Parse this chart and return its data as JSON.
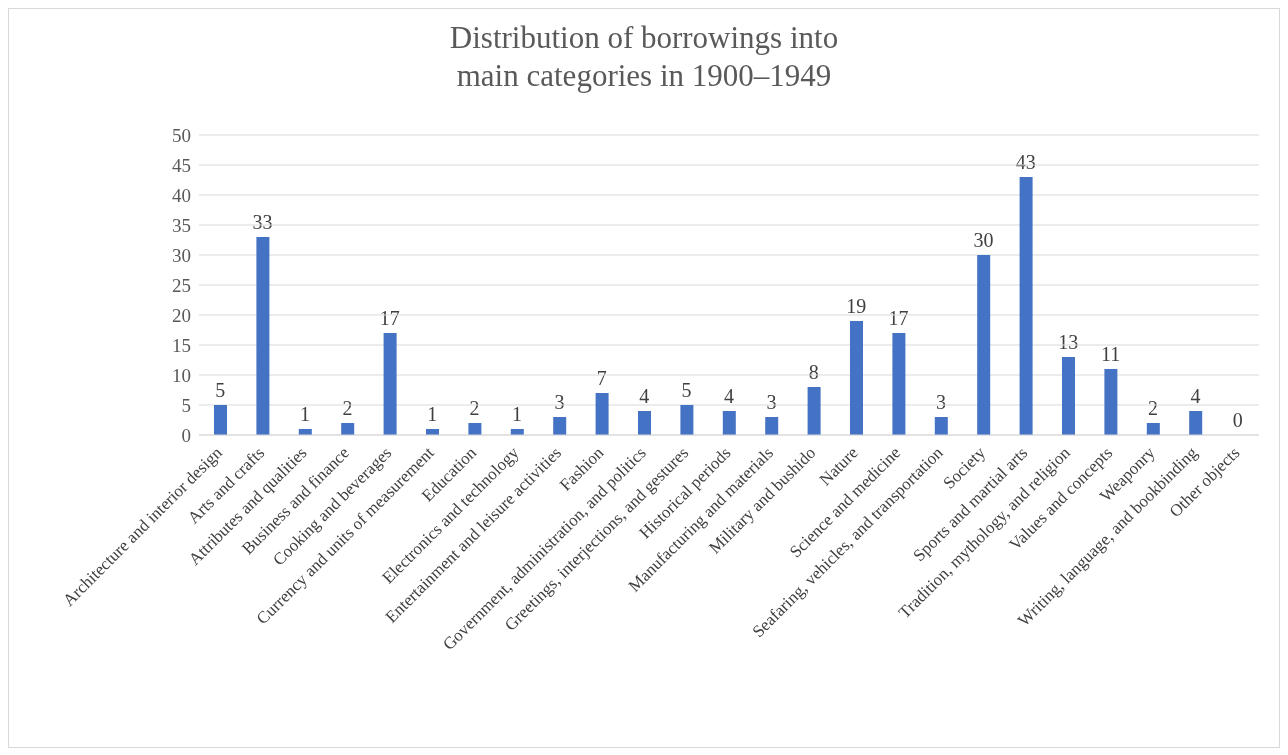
{
  "chart_data": {
    "type": "bar",
    "title": "Distribution of borrowings into main categories in 1900–1949",
    "categories": [
      "Architecture and interior design",
      "Arts and crafts",
      "Attributes and qualities",
      "Business and finance",
      "Cooking and beverages",
      "Currency and units of measurement",
      "Education",
      "Electronics and technology",
      "Entertainment and leisure activities",
      "Fashion",
      "Government, administration, and politics",
      "Greetings, interjections, and gestures",
      "Historical periods",
      "Manufacturing and materials",
      "Military and bushido",
      "Nature",
      "Science and medicine",
      "Seafaring, vehicles, and transportation",
      "Society",
      "Sports and martial arts",
      "Tradition, mythology, and religion",
      "Values and concepts",
      "Weaponry",
      "Writing, language, and bookbinding",
      "Other objects"
    ],
    "values": [
      5,
      33,
      1,
      2,
      17,
      1,
      2,
      1,
      3,
      7,
      4,
      5,
      4,
      3,
      8,
      19,
      17,
      3,
      30,
      43,
      13,
      11,
      2,
      4,
      0
    ],
    "color": "#4472c4",
    "ylim": [
      0,
      50
    ],
    "yticks": [
      0,
      5,
      10,
      15,
      20,
      25,
      30,
      35,
      40,
      45,
      50
    ],
    "grid": "y",
    "data_labels": true
  }
}
